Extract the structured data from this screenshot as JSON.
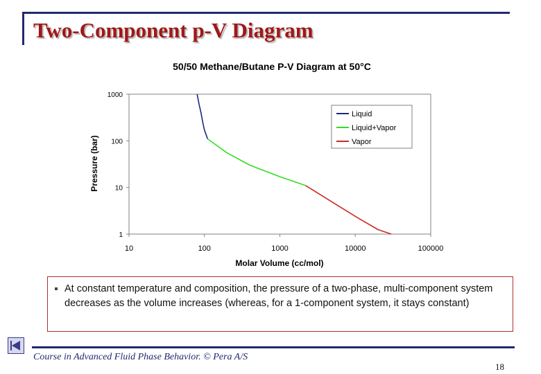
{
  "slide": {
    "title": "Two-Component p-V Diagram",
    "bullet": "At constant temperature and composition, the pressure of a two-phase, multi-component system decreases as the volume increases (whereas, for a 1-component system, it stays constant)",
    "footer": "Course in Advanced Fluid Phase Behavior. © Pera A/S",
    "page_number": "18",
    "nav_icon": "previous-slide-icon"
  },
  "chart_data": {
    "type": "line",
    "title": "50/50 Methane/Butane P-V Diagram at 50°C",
    "xlabel": "Molar Volume (cc/mol)",
    "ylabel": "Pressure (bar)",
    "xscale": "log",
    "yscale": "log",
    "xlim": [
      10,
      100000
    ],
    "ylim": [
      1,
      1000
    ],
    "xticks": [
      10,
      100,
      1000,
      10000,
      100000
    ],
    "yticks": [
      1,
      10,
      100,
      1000
    ],
    "xtick_labels": [
      "10",
      "100",
      "1000",
      "10000",
      "100000"
    ],
    "ytick_labels": [
      "1",
      "10",
      "100",
      "1000"
    ],
    "grid": false,
    "legend_position": "top-right",
    "series": [
      {
        "name": "Liquid",
        "color": "#1c2680",
        "x": [
          80,
          85,
          90,
          95,
          100,
          110
        ],
        "y": [
          1000,
          600,
          400,
          250,
          170,
          110
        ]
      },
      {
        "name": "Liquid+Vapor",
        "color": "#33dd22",
        "x": [
          110,
          200,
          400,
          1000,
          2200
        ],
        "y": [
          110,
          55,
          30,
          17,
          11
        ]
      },
      {
        "name": "Vapor",
        "color": "#cc2a1f",
        "x": [
          2200,
          5000,
          10000,
          20000,
          30000
        ],
        "y": [
          11,
          4.8,
          2.4,
          1.25,
          1
        ]
      }
    ]
  }
}
